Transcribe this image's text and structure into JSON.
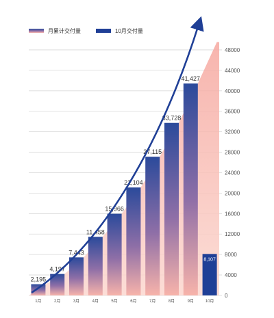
{
  "colors": {
    "cumulative_top": "#f6a8a0",
    "cumulative_bottom": "#fbd7cf",
    "bar_top": "#2b4a9b",
    "bar_mid": "#8f6fa7",
    "bar_bottom": "#f7b3aa",
    "october_bar": "#1f3f96",
    "curve": "#1f3f96",
    "grid": "#d9d9d9"
  },
  "chart_data": {
    "type": "bar",
    "legend": [
      {
        "name": "月累计交付量",
        "swatch": "gradient"
      },
      {
        "name": "10月交付量",
        "swatch": "solid"
      }
    ],
    "legend_position": "top-left",
    "categories": [
      "1月",
      "2月",
      "3月",
      "4月",
      "5月",
      "6月",
      "7月",
      "8月",
      "9月",
      "10月"
    ],
    "series": [
      {
        "name": "月累计交付量",
        "values": [
          2195,
          4197,
          7443,
          11458,
          15966,
          21104,
          27115,
          33728,
          41427,
          49534
        ],
        "labels": [
          "2,195",
          "4,197",
          "7,443",
          "11,458",
          "15,966",
          "21,104",
          "27,115",
          "33,728",
          "41,427",
          ""
        ]
      },
      {
        "name": "10月交付量",
        "values": [
          null,
          null,
          null,
          null,
          null,
          null,
          null,
          null,
          null,
          8107
        ],
        "labels": [
          "",
          "",
          "",
          "",
          "",
          "",
          "",
          "",
          "",
          "8,107"
        ]
      }
    ],
    "y_axis": {
      "position": "right",
      "ylim": [
        0,
        50000
      ],
      "ticks": [
        0,
        4000,
        8000,
        12000,
        16000,
        20000,
        24000,
        28000,
        32000,
        36000,
        40000,
        44000,
        48000
      ]
    },
    "grid": true,
    "trend_arrow": true
  }
}
